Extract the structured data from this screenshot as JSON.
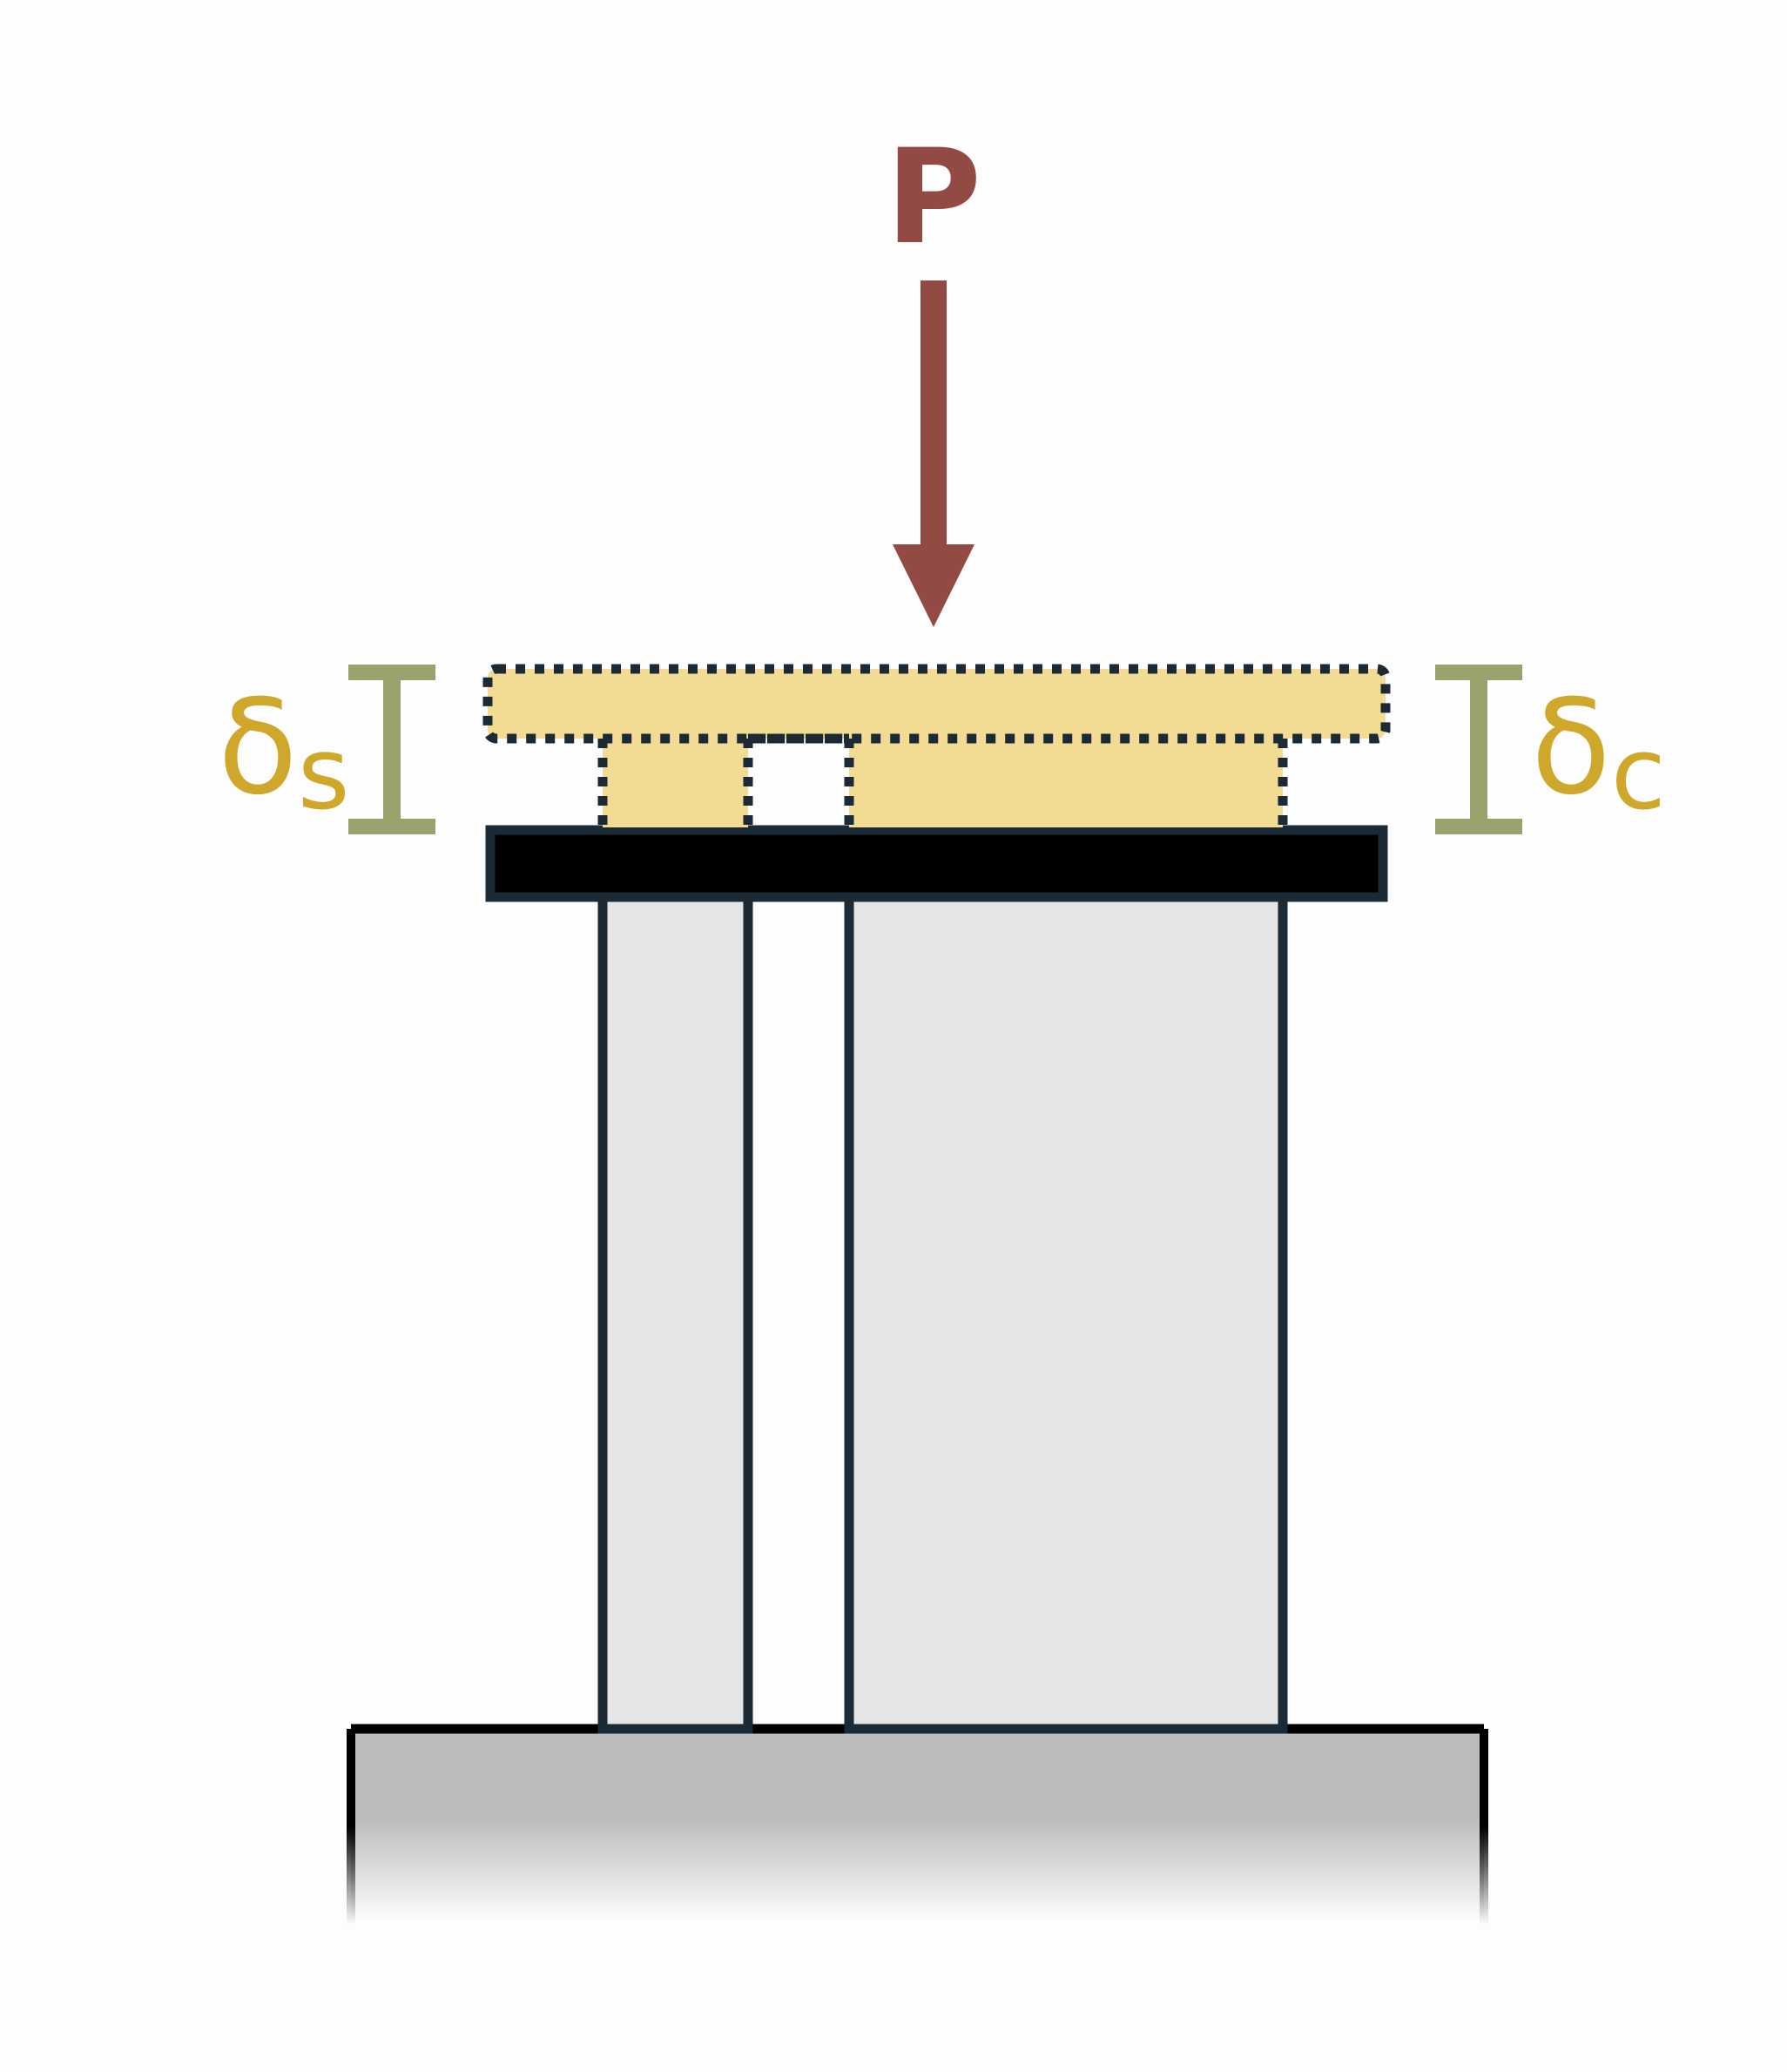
{
  "load": {
    "label": "P"
  },
  "deflections": {
    "left": {
      "symbol": "δ",
      "subscript": "s"
    },
    "right": {
      "symbol": "δ",
      "subscript": "c"
    }
  },
  "colors": {
    "load_arrow": "#934a45",
    "deflection_bracket": "#9aa26e",
    "deflection_label": "#cfa72a",
    "displaced_shape_fill": "#f2db93",
    "outline": "#1b2a35",
    "rigid_plate": "#000000",
    "member_fill": "#e6e6e6",
    "base_fill": "#bdbdbd"
  },
  "icons": {
    "load": "down-arrow-icon",
    "bracket": "dimension-bracket-icon"
  }
}
